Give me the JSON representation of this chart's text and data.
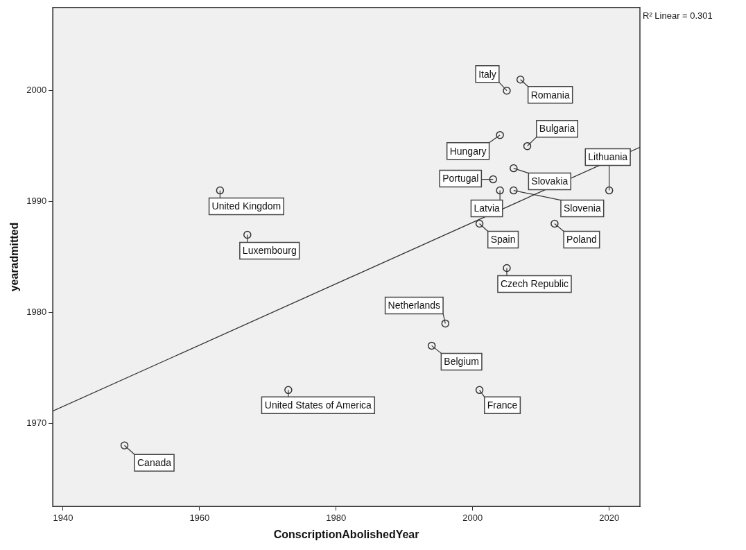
{
  "chart_data": {
    "type": "scatter",
    "xlabel": "ConscriptionAbolishedYear",
    "ylabel": "yearadmitted",
    "xlim": [
      1938.5,
      2024.5
    ],
    "ylim": [
      1962.5,
      2007.5
    ],
    "xticks": [
      1940,
      1960,
      1980,
      2000,
      2020
    ],
    "yticks": [
      1970,
      1980,
      1990,
      2000
    ],
    "grid": false,
    "marker": "circle",
    "annotations": [
      "R² Linear = 0.301",
      {
        "text": "Canada",
        "x": 1949,
        "y": 1968
      },
      {
        "text": "United States of America",
        "x": 1973,
        "y": 1973
      },
      {
        "text": "United Kingdom",
        "x": 1963,
        "y": 1991
      },
      {
        "text": "Luxembourg",
        "x": 1967,
        "y": 1987
      },
      {
        "text": "Netherlands",
        "x": 1996,
        "y": 1979
      },
      {
        "text": "Belgium",
        "x": 1994,
        "y": 1977
      },
      {
        "text": "France",
        "x": 2001,
        "y": 1973
      },
      {
        "text": "Czech Republic",
        "x": 2005,
        "y": 1984
      },
      {
        "text": "Spain",
        "x": 2001,
        "y": 1988
      },
      {
        "text": "Poland",
        "x": 2012,
        "y": 1988
      },
      {
        "text": "Latvia",
        "x": 2004,
        "y": 1991
      },
      {
        "text": "Slovenia",
        "x": 2006,
        "y": 1991
      },
      {
        "text": "Slovakia",
        "x": 2006,
        "y": 1993
      },
      {
        "text": "Lithuania",
        "x": 2020,
        "y": 1991
      },
      {
        "text": "Portugal",
        "x": 2003,
        "y": 1992
      },
      {
        "text": "Hungary",
        "x": 2004,
        "y": 1996
      },
      {
        "text": "Bulgaria",
        "x": 2008,
        "y": 1995
      },
      {
        "text": "Italy",
        "x": 2005,
        "y": 2000
      },
      {
        "text": "Romania",
        "x": 2007,
        "y": 2001
      }
    ],
    "series": [
      {
        "color": "#333333",
        "x": [
          1949,
          1973,
          1963,
          1967,
          1996,
          1994,
          2001,
          2005,
          2001,
          2012,
          2004,
          2006,
          2006,
          2020,
          2003,
          2004,
          2008,
          2005,
          2007
        ],
        "values": [
          1968,
          1973,
          1991,
          1987,
          1979,
          1977,
          1973,
          1984,
          1988,
          1988,
          1991,
          1991,
          1993,
          1991,
          1992,
          1996,
          1995,
          2000,
          2001
        ]
      },
      {
        "type": "line",
        "color": "#333333",
        "marker": "none",
        "x": [
          1938.5,
          2024.5
        ],
        "values": [
          1971.1,
          1994.9
        ]
      }
    ]
  }
}
